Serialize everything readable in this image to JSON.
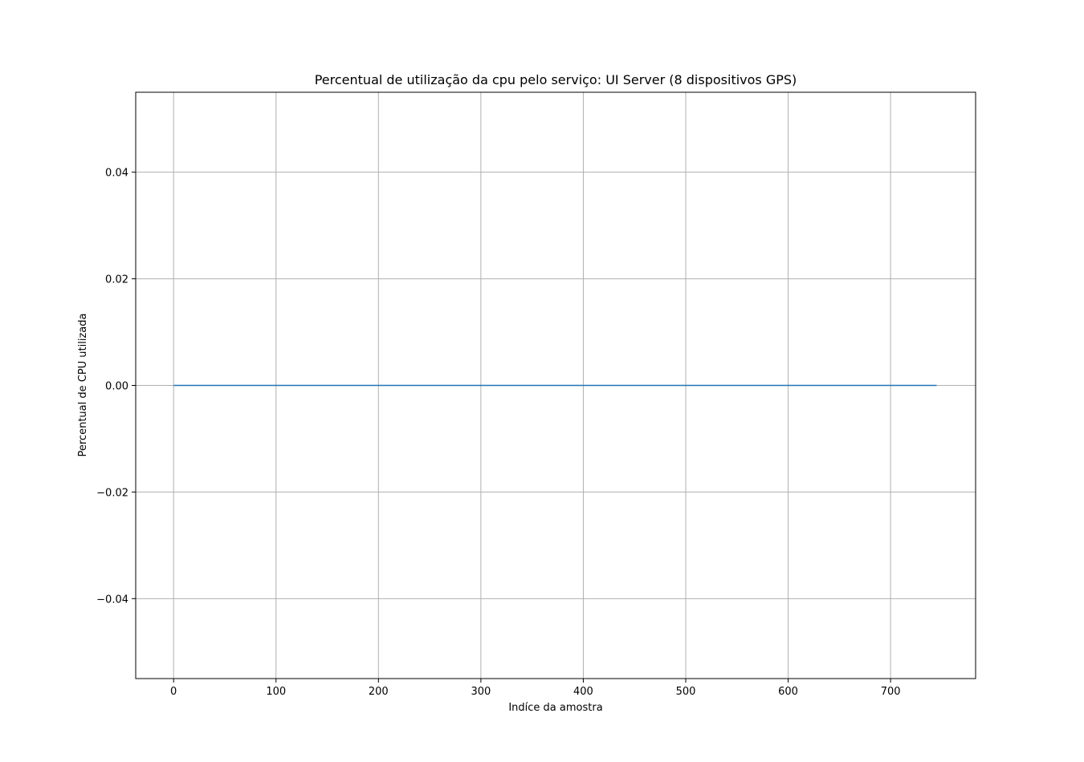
{
  "chart_data": {
    "type": "line",
    "title": "Percentual de utilização da cpu pelo serviço: UI Server (8 dispositivos GPS)",
    "xlabel": "Indíce da amostra",
    "ylabel": "Percentual de CPU utilizada",
    "xlim": [
      -37,
      783
    ],
    "ylim": [
      -0.055,
      0.055
    ],
    "x_ticks": [
      0,
      100,
      200,
      300,
      400,
      500,
      600,
      700
    ],
    "x_tick_labels": [
      "0",
      "100",
      "200",
      "300",
      "400",
      "500",
      "600",
      "700"
    ],
    "y_ticks": [
      0.04,
      0.02,
      0.0,
      -0.02,
      -0.04
    ],
    "y_tick_labels": [
      "0.04",
      "0.02",
      "0.00",
      "−0.02",
      "−0.04"
    ],
    "grid": true,
    "series": [
      {
        "color": "#1f77b4",
        "x": [
          0,
          745
        ],
        "y": [
          0.0,
          0.0
        ]
      }
    ]
  }
}
